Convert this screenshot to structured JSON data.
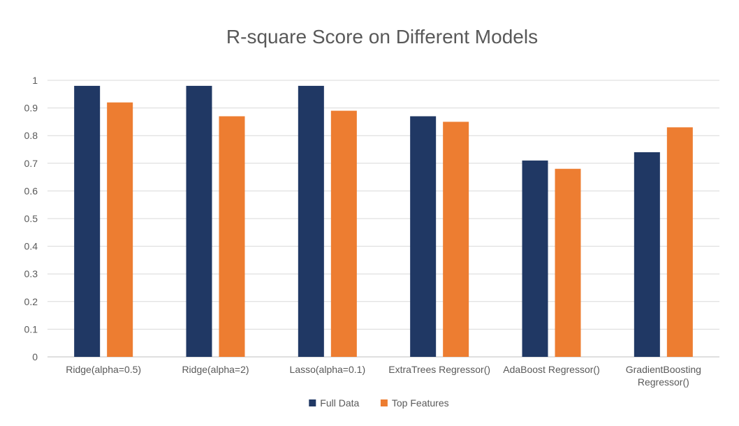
{
  "chart_data": {
    "type": "bar",
    "title": "R-square Score on Different Models",
    "xlabel": "",
    "ylabel": "",
    "ylim": [
      0,
      1
    ],
    "yticks": [
      "0",
      "0.1",
      "0.2",
      "0.3",
      "0.4",
      "0.5",
      "0.6",
      "0.7",
      "0.8",
      "0.9",
      "1"
    ],
    "categories": [
      "Ridge(alpha=0.5)",
      "Ridge(alpha=2)",
      "Lasso(alpha=0.1)",
      "ExtraTrees Regressor()",
      "AdaBoost Regressor()",
      "GradientBoosting Regressor()"
    ],
    "series": [
      {
        "name": "Full Data",
        "color": "#203864",
        "values": [
          0.98,
          0.98,
          0.98,
          0.87,
          0.71,
          0.74
        ]
      },
      {
        "name": "Top Features",
        "color": "#ED7D31",
        "values": [
          0.92,
          0.87,
          0.89,
          0.85,
          0.68,
          0.83
        ]
      }
    ],
    "grid": true,
    "legend_position": "bottom"
  }
}
